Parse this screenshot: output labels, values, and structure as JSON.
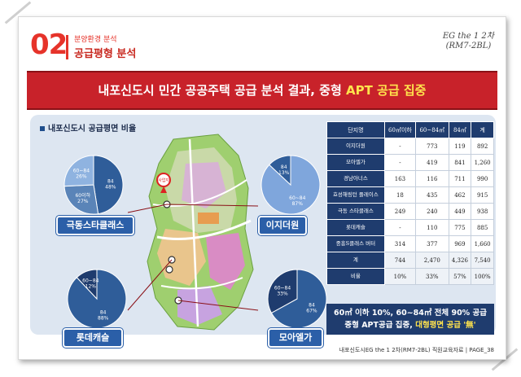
{
  "header": {
    "section_number": "02",
    "subtitle": "분양환경 분석",
    "title": "공급평형 분석",
    "project_line1": "EG the 1 2차",
    "project_line2": "(RM7-2BL)"
  },
  "banner": {
    "text_before": "내포신도시 민간 공공주택 공급 분석 결과, 중형 ",
    "text_highlight": "APT 공급 집중"
  },
  "panel": {
    "title": "내포신도시 공급평면 비율",
    "map_pin_label": "사업지"
  },
  "pies": [
    {
      "name": "극동스타클래스",
      "slices": [
        {
          "label": "84",
          "pct": "48%",
          "value": 48,
          "color": "#2f5d99"
        },
        {
          "label": "60이하",
          "pct": "27%",
          "value": 27,
          "color": "#5a84b8"
        },
        {
          "label": "60~84",
          "pct": "26%",
          "value": 26,
          "color": "#8fb3e0"
        }
      ]
    },
    {
      "name": "이지더원",
      "slices": [
        {
          "label": "60~84",
          "pct": "87%",
          "value": 87,
          "color": "#7fa6dc"
        },
        {
          "label": "84",
          "pct": "13%",
          "value": 13,
          "color": "#2f5d99"
        }
      ]
    },
    {
      "name": "롯데캐슬",
      "slices": [
        {
          "label": "84",
          "pct": "88%",
          "value": 88,
          "color": "#2f5d99"
        },
        {
          "label": "60~84",
          "pct": "12%",
          "value": 12,
          "color": "#1f3c6e"
        }
      ]
    },
    {
      "name": "모아엘가",
      "slices": [
        {
          "label": "84",
          "pct": "67%",
          "value": 67,
          "color": "#2f5d99"
        },
        {
          "label": "60~84",
          "pct": "33%",
          "value": 33,
          "color": "#1f3c6e"
        }
      ]
    }
  ],
  "labels": {
    "geukdong": "극동스타클래스",
    "easy": "이지더원",
    "lotte": "롯데캐슬",
    "moa": "모아엘가"
  },
  "table": {
    "headers": [
      "단지명",
      "60㎡이하",
      "60~84㎡",
      "84㎡",
      "계"
    ],
    "rows": [
      [
        "이지더원",
        "-",
        "773",
        "119",
        "892"
      ],
      [
        "모아엘가",
        "-",
        "419",
        "841",
        "1,260"
      ],
      [
        "경남아너스",
        "163",
        "116",
        "711",
        "990"
      ],
      [
        "효성해링턴 플레이스",
        "18",
        "435",
        "462",
        "915"
      ],
      [
        "극동 스타클래스",
        "249",
        "240",
        "449",
        "938"
      ],
      [
        "롯데캐슬",
        "-",
        "110",
        "775",
        "885"
      ],
      [
        "중흥S클래스 버터",
        "314",
        "377",
        "969",
        "1,660"
      ],
      [
        "계",
        "744",
        "2,470",
        "4,326",
        "7,540"
      ],
      [
        "비율",
        "10%",
        "33%",
        "57%",
        "100%"
      ]
    ]
  },
  "note": {
    "line1": "60㎡ 이하 10%, 60~84㎡ 전체 90% 공급",
    "line2_before": "중형 APT공급 집중, ",
    "line2_highlight": "대형평면 공급 '無'"
  },
  "footer": "내포신도시EG the 1 2차(RM7-2BL)  직원교육자료 | PAGE_38"
}
